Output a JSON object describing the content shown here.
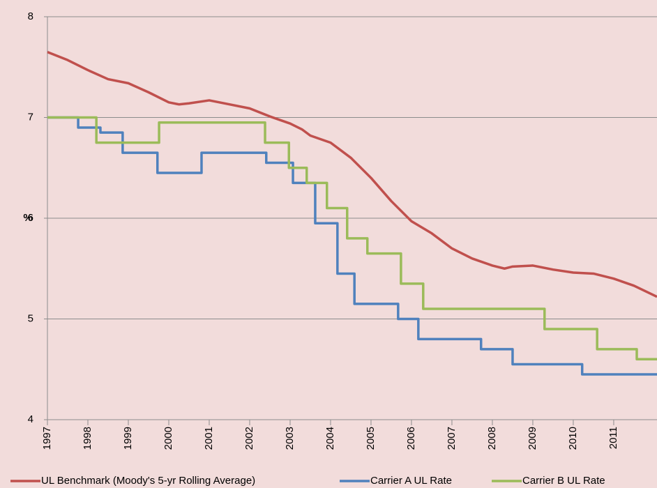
{
  "chart_data": {
    "type": "line",
    "y_label": "%",
    "step": "post",
    "xlim": [
      1997,
      2012.07
    ],
    "xticks": [
      1997,
      1998,
      1999,
      2000,
      2001,
      2002,
      2003,
      2004,
      2005,
      2006,
      2007,
      2008,
      2009,
      2010,
      2011
    ],
    "ylim": [
      4,
      8
    ],
    "yticks": [
      4,
      5,
      6,
      7,
      8
    ],
    "grid": true,
    "series": [
      {
        "name": "UL Benchmark (Moody's 5-yr Rolling Average)",
        "color": "#c0504d",
        "step": false,
        "x": [
          1997,
          1997.5,
          1998,
          1998.5,
          1999,
          1999.5,
          2000,
          2000.25,
          2000.5,
          2001,
          2001.5,
          2002,
          2002.5,
          2003,
          2003.3,
          2003.5,
          2004,
          2004.5,
          2005,
          2005.5,
          2006,
          2006.5,
          2007,
          2007.5,
          2008,
          2008.3,
          2008.5,
          2009,
          2009.5,
          2010,
          2010.5,
          2011,
          2011.5,
          2012.07
        ],
        "values": [
          7.65,
          7.57,
          7.47,
          7.38,
          7.34,
          7.25,
          7.15,
          7.13,
          7.14,
          7.17,
          7.13,
          7.09,
          7.01,
          6.94,
          6.88,
          6.82,
          6.75,
          6.6,
          6.4,
          6.17,
          5.97,
          5.85,
          5.7,
          5.6,
          5.53,
          5.5,
          5.52,
          5.53,
          5.49,
          5.46,
          5.45,
          5.4,
          5.33,
          5.22
        ]
      },
      {
        "name": "Carrier A UL Rate",
        "color": "#4f81bd",
        "step": true,
        "x": [
          1997,
          1997.76,
          1998.31,
          1998.86,
          1999.72,
          2000.81,
          2002.41,
          2003.07,
          2003.62,
          2004.17,
          2004.59,
          2005.67,
          2006.17,
          2007.72,
          2008.5,
          2010.22,
          2012.07
        ],
        "values": [
          7.0,
          6.9,
          6.85,
          6.65,
          6.45,
          6.65,
          6.55,
          6.35,
          5.95,
          5.45,
          5.15,
          5.0,
          4.8,
          4.7,
          4.55,
          4.45,
          4.45
        ]
      },
      {
        "name": "Carrier B UL Rate",
        "color": "#9bbb59",
        "step": true,
        "x": [
          1997,
          1998.21,
          1999.76,
          2002.38,
          2002.97,
          2003.41,
          2003.91,
          2004.41,
          2004.91,
          2005.74,
          2006.29,
          2009.29,
          2010.59,
          2011.57,
          2012.07
        ],
        "values": [
          7.0,
          6.75,
          6.95,
          6.75,
          6.5,
          6.35,
          6.1,
          5.8,
          5.65,
          5.35,
          5.1,
          4.9,
          4.7,
          4.6,
          4.6
        ]
      }
    ]
  }
}
